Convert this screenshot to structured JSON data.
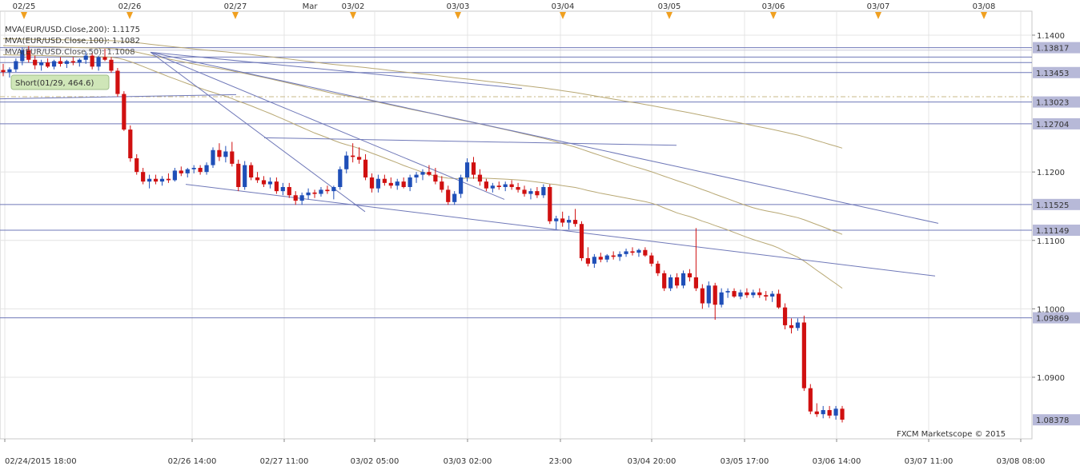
{
  "chart_data": {
    "type": "candlestick",
    "symbol": "EUR/USD",
    "ylim": [
      1.081,
      1.1435
    ],
    "top_dates": [
      "02/25",
      "02/26",
      "02/27",
      "Mar",
      "03/02",
      "03/03",
      "03/04",
      "03/05",
      "03/06",
      "03/07",
      "03/08"
    ],
    "x_tick_labels": [
      "02/24/2015 18:00",
      "02/26 14:00",
      "02/27 11:00",
      "03/02 05:00",
      "03/03 02:00",
      "23:00",
      "03/04 20:00",
      "03/05 17:00",
      "03/06 14:00",
      "03/07 11:00",
      "03/08 08:00"
    ],
    "y_ticks": [
      "1.1400",
      "1.1200",
      "1.1100",
      "1.1000",
      "1.0900"
    ],
    "horizontal_levels": [
      "1.13817",
      "1.13453",
      "1.13023",
      "1.12704",
      "1.11525",
      "1.11149",
      "1.09869"
    ],
    "current_price": "1.08378",
    "legend": [
      {
        "text": "MVA(EUR/USD.Close,200): 1.1175",
        "color": "#c8b98a"
      },
      {
        "text": "MVA(EUR/USD.Close,100): 1.1082",
        "color": "#c8b98a"
      },
      {
        "text": "MVA(EUR/USD.Close,50): 1.1008",
        "color": "#c8b98a"
      }
    ],
    "trade_label": "Short(01/29, 464.6)",
    "watermark": "FXCM Marketscope © 2015",
    "colors": {
      "up": "#1f4fb8",
      "down": "#d01010",
      "ma": "#b8a874",
      "trend": "#6f78b8",
      "level": "#6f78b8",
      "marker": "#f0a020"
    },
    "ohlc": [
      [
        1.1349,
        1.1358,
        1.134,
        1.1346
      ],
      [
        1.1346,
        1.1353,
        1.1338,
        1.135
      ],
      [
        1.135,
        1.1366,
        1.1346,
        1.1362
      ],
      [
        1.1362,
        1.1382,
        1.1356,
        1.1378
      ],
      [
        1.1378,
        1.1384,
        1.136,
        1.1364
      ],
      [
        1.1364,
        1.137,
        1.135,
        1.1356
      ],
      [
        1.1356,
        1.1364,
        1.1348,
        1.136
      ],
      [
        1.136,
        1.1366,
        1.1352,
        1.1354
      ],
      [
        1.1354,
        1.1364,
        1.135,
        1.1362
      ],
      [
        1.1362,
        1.1368,
        1.1354,
        1.1358
      ],
      [
        1.1358,
        1.1364,
        1.1352,
        1.1362
      ],
      [
        1.1362,
        1.1368,
        1.1356,
        1.136
      ],
      [
        1.136,
        1.1366,
        1.1354,
        1.1364
      ],
      [
        1.1364,
        1.1376,
        1.1358,
        1.137
      ],
      [
        1.137,
        1.1374,
        1.135,
        1.1354
      ],
      [
        1.1354,
        1.137,
        1.1348,
        1.1368
      ],
      [
        1.1368,
        1.138,
        1.1362,
        1.1364
      ],
      [
        1.1364,
        1.1368,
        1.1345,
        1.1348
      ],
      [
        1.1348,
        1.1352,
        1.131,
        1.1314
      ],
      [
        1.1314,
        1.1318,
        1.126,
        1.1262
      ],
      [
        1.1262,
        1.1268,
        1.1215,
        1.122
      ],
      [
        1.122,
        1.1226,
        1.1196,
        1.12
      ],
      [
        1.12,
        1.1206,
        1.1182,
        1.1186
      ],
      [
        1.1186,
        1.1196,
        1.1176,
        1.119
      ],
      [
        1.119,
        1.1196,
        1.1182,
        1.1186
      ],
      [
        1.1186,
        1.1194,
        1.118,
        1.119
      ],
      [
        1.119,
        1.1198,
        1.1184,
        1.1188
      ],
      [
        1.1188,
        1.1206,
        1.1186,
        1.1202
      ],
      [
        1.1202,
        1.1208,
        1.1194,
        1.1198
      ],
      [
        1.1198,
        1.1206,
        1.1192,
        1.1204
      ],
      [
        1.1204,
        1.121,
        1.1198,
        1.1206
      ],
      [
        1.1206,
        1.121,
        1.1196,
        1.12
      ],
      [
        1.12,
        1.1214,
        1.1196,
        1.121
      ],
      [
        1.121,
        1.1236,
        1.1206,
        1.1232
      ],
      [
        1.1232,
        1.1242,
        1.1216,
        1.1222
      ],
      [
        1.1222,
        1.1238,
        1.1214,
        1.123
      ],
      [
        1.123,
        1.1244,
        1.1208,
        1.1212
      ],
      [
        1.1212,
        1.1218,
        1.1172,
        1.1178
      ],
      [
        1.1178,
        1.1216,
        1.1174,
        1.121
      ],
      [
        1.121,
        1.1214,
        1.1188,
        1.1192
      ],
      [
        1.1192,
        1.12,
        1.1184,
        1.1188
      ],
      [
        1.1188,
        1.1194,
        1.1178,
        1.1182
      ],
      [
        1.1182,
        1.1192,
        1.1176,
        1.1186
      ],
      [
        1.1186,
        1.1192,
        1.1168,
        1.1172
      ],
      [
        1.1172,
        1.1184,
        1.1166,
        1.1178
      ],
      [
        1.1178,
        1.1184,
        1.1162,
        1.1166
      ],
      [
        1.1166,
        1.1172,
        1.1152,
        1.1158
      ],
      [
        1.1158,
        1.117,
        1.1152,
        1.1166
      ],
      [
        1.1166,
        1.1176,
        1.116,
        1.117
      ],
      [
        1.117,
        1.1174,
        1.1162,
        1.1168
      ],
      [
        1.1168,
        1.1178,
        1.1164,
        1.1174
      ],
      [
        1.1174,
        1.118,
        1.1168,
        1.1172
      ],
      [
        1.1172,
        1.118,
        1.116,
        1.1178
      ],
      [
        1.1178,
        1.1208,
        1.1174,
        1.1204
      ],
      [
        1.1204,
        1.123,
        1.1198,
        1.1224
      ],
      [
        1.1224,
        1.1242,
        1.1214,
        1.1222
      ],
      [
        1.1222,
        1.1236,
        1.1212,
        1.1218
      ],
      [
        1.1218,
        1.1226,
        1.1188,
        1.1192
      ],
      [
        1.1192,
        1.1198,
        1.117,
        1.1176
      ],
      [
        1.1176,
        1.1196,
        1.117,
        1.119
      ],
      [
        1.119,
        1.1196,
        1.118,
        1.1184
      ],
      [
        1.1184,
        1.1192,
        1.1176,
        1.118
      ],
      [
        1.118,
        1.119,
        1.1174,
        1.1186
      ],
      [
        1.1186,
        1.1192,
        1.1176,
        1.1178
      ],
      [
        1.1178,
        1.1196,
        1.1172,
        1.1192
      ],
      [
        1.1192,
        1.12,
        1.1184,
        1.1196
      ],
      [
        1.1196,
        1.1204,
        1.1188,
        1.12
      ],
      [
        1.12,
        1.121,
        1.1194,
        1.1196
      ],
      [
        1.1196,
        1.1206,
        1.1182,
        1.1186
      ],
      [
        1.1186,
        1.1194,
        1.117,
        1.1174
      ],
      [
        1.1174,
        1.118,
        1.1152,
        1.1156
      ],
      [
        1.1156,
        1.1172,
        1.1152,
        1.1168
      ],
      [
        1.1168,
        1.1196,
        1.1162,
        1.1192
      ],
      [
        1.1192,
        1.122,
        1.1186,
        1.1214
      ],
      [
        1.1214,
        1.1222,
        1.119,
        1.1196
      ],
      [
        1.1196,
        1.1204,
        1.118,
        1.1186
      ],
      [
        1.1186,
        1.119,
        1.1172,
        1.1176
      ],
      [
        1.1176,
        1.1184,
        1.117,
        1.118
      ],
      [
        1.118,
        1.1186,
        1.1174,
        1.1178
      ],
      [
        1.1178,
        1.1186,
        1.1172,
        1.1182
      ],
      [
        1.1182,
        1.1188,
        1.1174,
        1.1178
      ],
      [
        1.1178,
        1.1184,
        1.117,
        1.1174
      ],
      [
        1.1174,
        1.118,
        1.1164,
        1.1168
      ],
      [
        1.1168,
        1.1176,
        1.116,
        1.1172
      ],
      [
        1.1172,
        1.1178,
        1.1162,
        1.1166
      ],
      [
        1.1166,
        1.1182,
        1.1162,
        1.1178
      ],
      [
        1.1178,
        1.1182,
        1.1124,
        1.1128
      ],
      [
        1.1128,
        1.1136,
        1.1116,
        1.1132
      ],
      [
        1.1132,
        1.1142,
        1.112,
        1.1126
      ],
      [
        1.1126,
        1.1136,
        1.1116,
        1.113
      ],
      [
        1.113,
        1.1146,
        1.112,
        1.1124
      ],
      [
        1.1124,
        1.1128,
        1.107,
        1.1074
      ],
      [
        1.1074,
        1.109,
        1.1062,
        1.1066
      ],
      [
        1.1066,
        1.108,
        1.106,
        1.1076
      ],
      [
        1.1076,
        1.1082,
        1.1068,
        1.1072
      ],
      [
        1.1072,
        1.108,
        1.1068,
        1.1078
      ],
      [
        1.1078,
        1.1084,
        1.1072,
        1.1076
      ],
      [
        1.1076,
        1.1084,
        1.107,
        1.108
      ],
      [
        1.108,
        1.1088,
        1.1076,
        1.1084
      ],
      [
        1.1084,
        1.109,
        1.1078,
        1.1082
      ],
      [
        1.1082,
        1.1088,
        1.1076,
        1.1086
      ],
      [
        1.1086,
        1.109,
        1.1076,
        1.1078
      ],
      [
        1.1078,
        1.1082,
        1.1062,
        1.1066
      ],
      [
        1.1066,
        1.107,
        1.1048,
        1.1052
      ],
      [
        1.1052,
        1.1056,
        1.1026,
        1.103
      ],
      [
        1.103,
        1.105,
        1.1026,
        1.1046
      ],
      [
        1.1046,
        1.1052,
        1.103,
        1.1034
      ],
      [
        1.1034,
        1.1056,
        1.103,
        1.1052
      ],
      [
        1.1052,
        1.1058,
        1.104,
        1.1046
      ],
      [
        1.1046,
        1.1118,
        1.1026,
        1.103
      ],
      [
        1.103,
        1.1036,
        1.1,
        1.1008
      ],
      [
        1.1008,
        1.104,
        1.1002,
        1.1034
      ],
      [
        1.1034,
        1.1038,
        1.0984,
        1.1006
      ],
      [
        1.1006,
        1.103,
        1.1002,
        1.1024
      ],
      [
        1.1024,
        1.103,
        1.1016,
        1.1026
      ],
      [
        1.1026,
        1.103,
        1.1016,
        1.1018
      ],
      [
        1.1018,
        1.1028,
        1.1014,
        1.1024
      ],
      [
        1.1024,
        1.103,
        1.1016,
        1.102
      ],
      [
        1.102,
        1.1028,
        1.1016,
        1.1024
      ],
      [
        1.1024,
        1.103,
        1.1016,
        1.102
      ],
      [
        1.102,
        1.1026,
        1.1012,
        1.1018
      ],
      [
        1.1018,
        1.1026,
        1.101,
        1.1022
      ],
      [
        1.1022,
        1.1028,
        1.1,
        1.1002
      ],
      [
        1.1002,
        1.1008,
        1.097,
        1.0976
      ],
      [
        1.0976,
        1.0986,
        1.0964,
        1.0972
      ],
      [
        1.0972,
        1.0986,
        1.0968,
        1.098
      ],
      [
        1.098,
        1.099,
        1.088,
        1.0884
      ],
      [
        1.0884,
        1.089,
        1.0846,
        1.085
      ],
      [
        1.085,
        1.0862,
        1.0842,
        1.0846
      ],
      [
        1.0846,
        1.0858,
        1.084,
        1.0852
      ],
      [
        1.0852,
        1.0858,
        1.084,
        1.0844
      ],
      [
        1.0844,
        1.0858,
        1.0838,
        1.0854
      ],
      [
        1.0854,
        1.0858,
        1.0834,
        1.0838
      ]
    ]
  }
}
